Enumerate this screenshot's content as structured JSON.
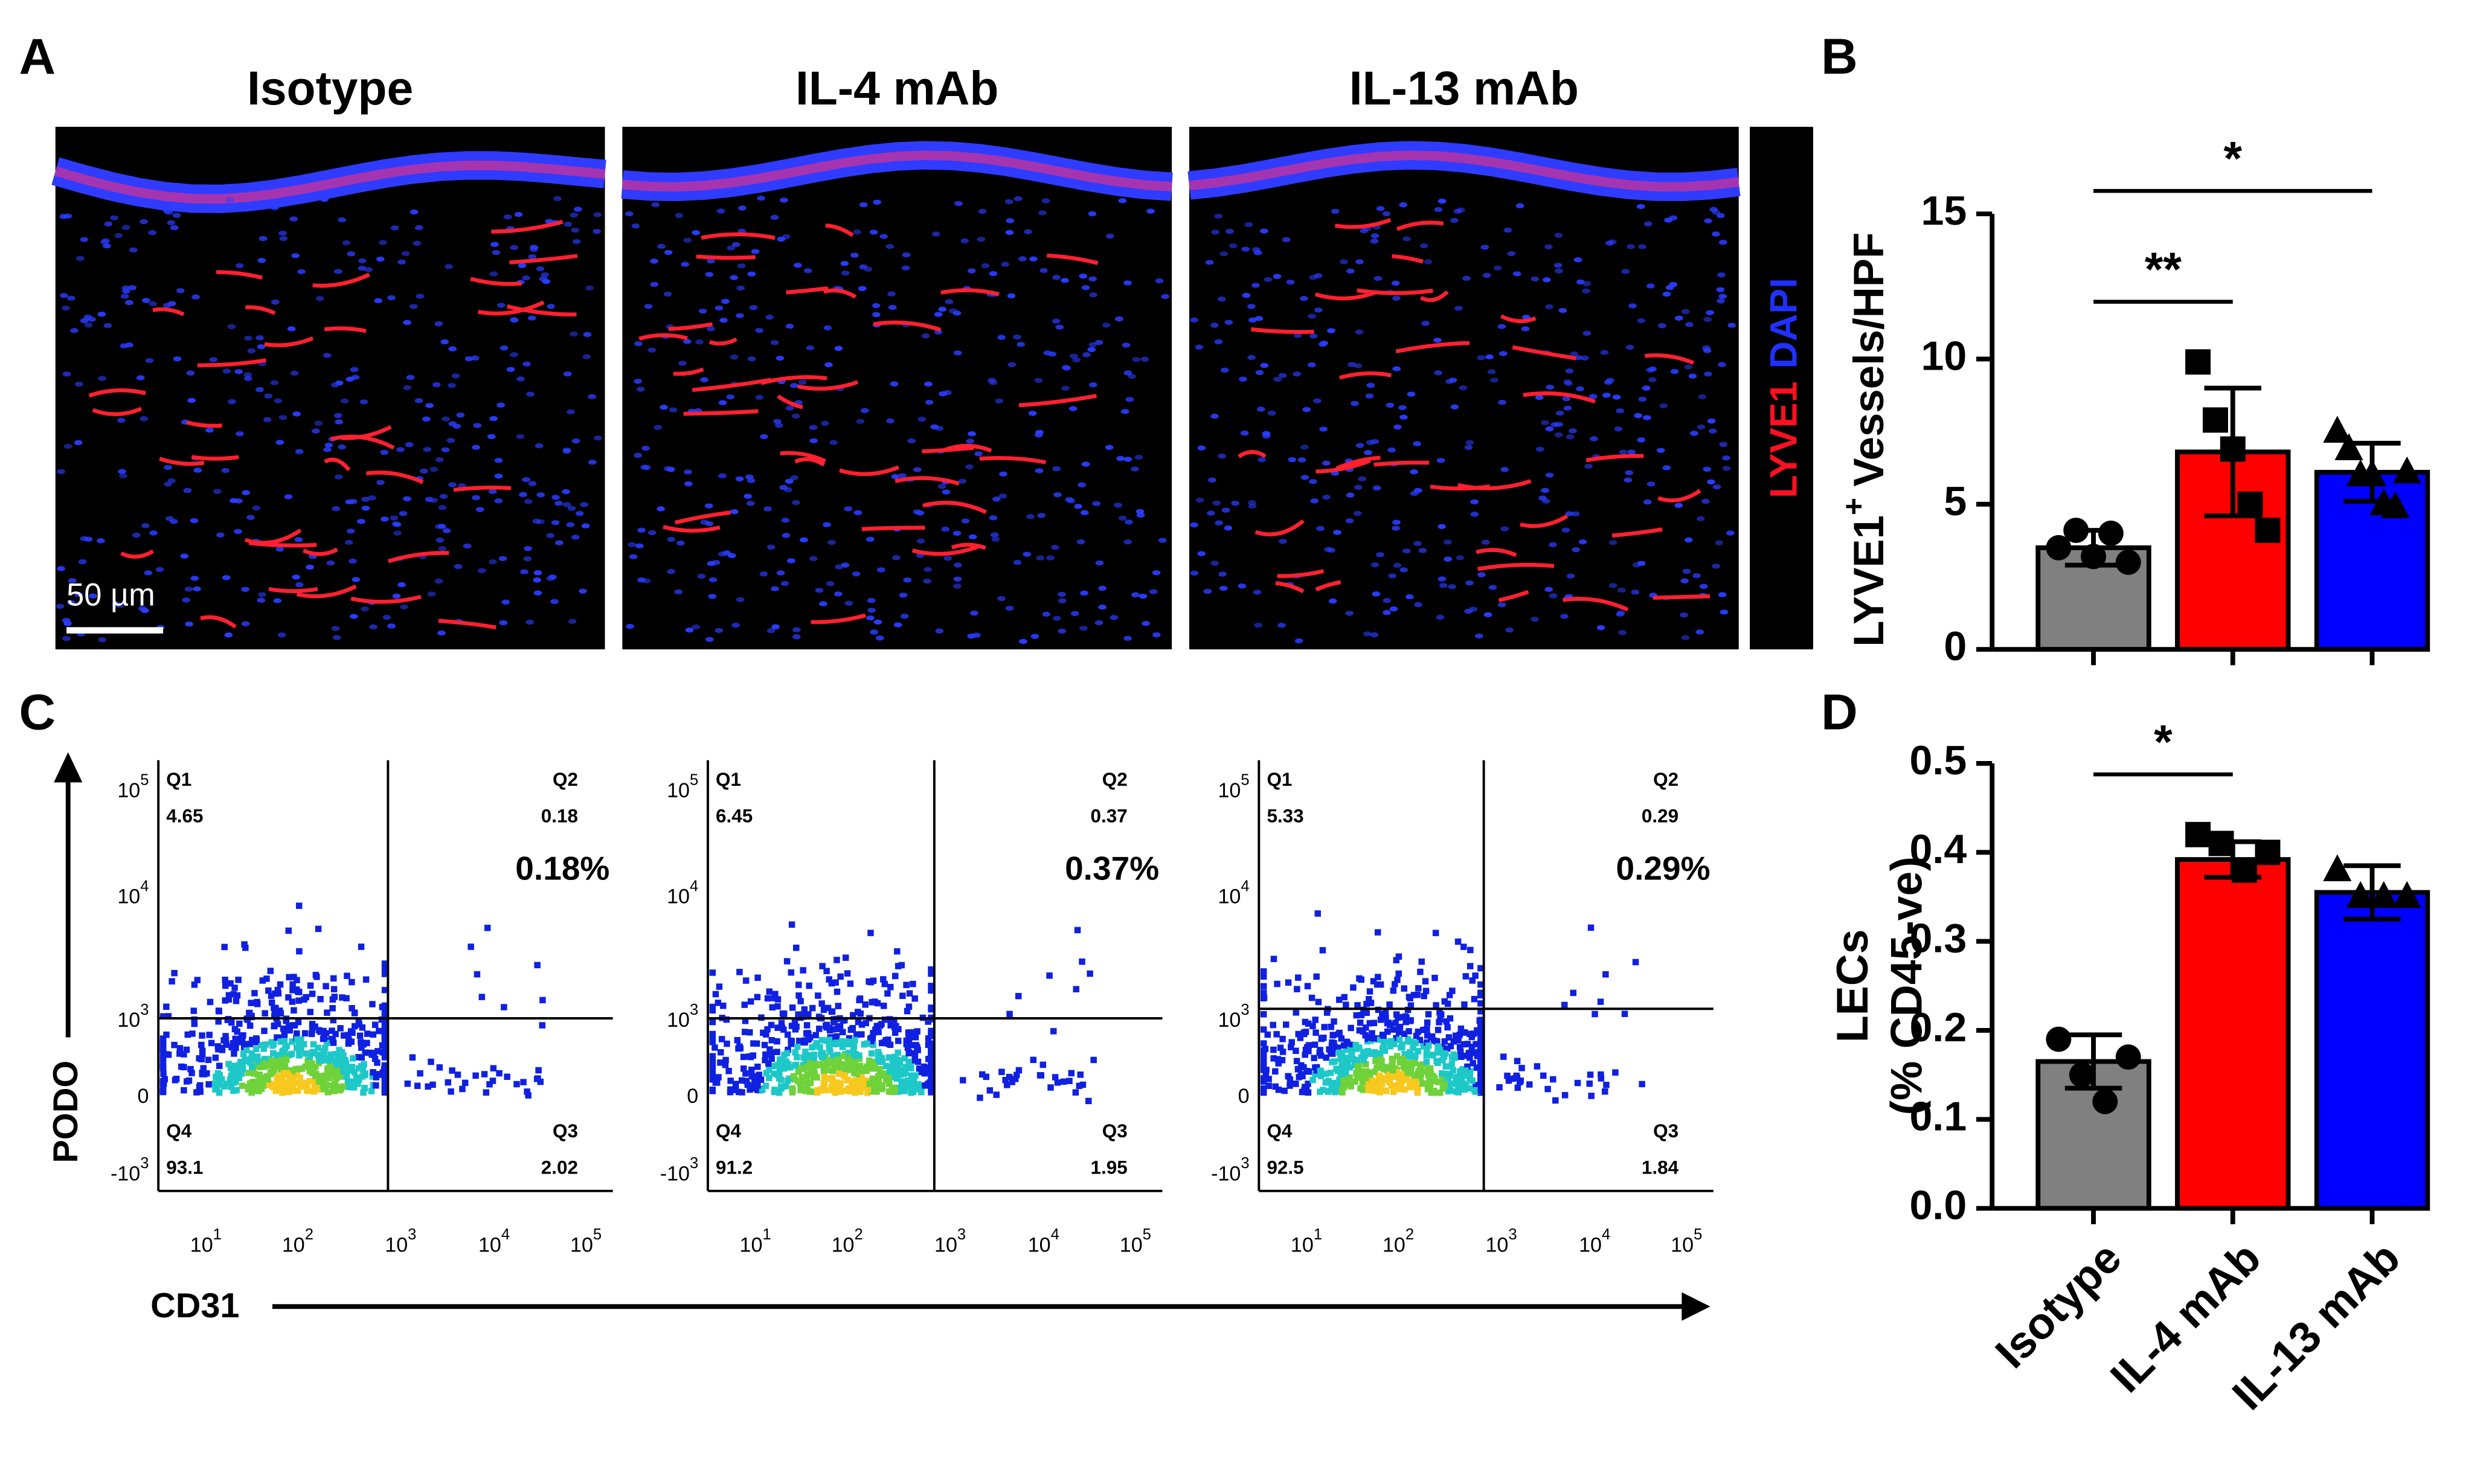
{
  "panel_labels": [
    "A",
    "B",
    "C",
    "D"
  ],
  "images": {
    "titles": [
      "Isotype",
      "IL-4 mAb",
      "IL-13 mAb"
    ],
    "scale_bar": "50 µm",
    "stain": [
      "LYVE1",
      "DAPI"
    ]
  },
  "flow": {
    "y_axis": "PODO",
    "x_axis": "CD31",
    "yticks": [
      {
        "base": "10",
        "exp": "5"
      },
      {
        "base": "10",
        "exp": "4"
      },
      {
        "base": "10",
        "exp": "3"
      },
      {
        "base": "0"
      },
      {
        "base": "-10",
        "exp": "3"
      }
    ],
    "xticks": [
      {
        "base": "10",
        "exp": "1"
      },
      {
        "base": "10",
        "exp": "2"
      },
      {
        "base": "10",
        "exp": "3"
      },
      {
        "base": "10",
        "exp": "4"
      },
      {
        "base": "10",
        "exp": "5"
      }
    ],
    "plots": [
      {
        "quadrants": [
          {
            "name": "Q1",
            "value": 4.65
          },
          {
            "name": "Q2",
            "value": 0.18
          },
          {
            "name": "Q3",
            "value": 2.02
          },
          {
            "name": "Q4",
            "value": 93.1
          }
        ],
        "highlight": "0.18%"
      },
      {
        "quadrants": [
          {
            "name": "Q1",
            "value": 6.45
          },
          {
            "name": "Q2",
            "value": 0.37
          },
          {
            "name": "Q3",
            "value": 1.95
          },
          {
            "name": "Q4",
            "value": 91.2
          }
        ],
        "highlight": "0.37%"
      },
      {
        "quadrants": [
          {
            "name": "Q1",
            "value": 5.33
          },
          {
            "name": "Q2",
            "value": 0.29
          },
          {
            "name": "Q3",
            "value": 1.84
          },
          {
            "name": "Q4",
            "value": 92.5
          }
        ],
        "highlight": "0.29%"
      }
    ]
  },
  "chart_data": [
    {
      "type": "bar",
      "ylabel": {
        "text": "LYVE1",
        "sup": "+",
        "rest": "Vessels/HPF"
      },
      "values": [
        3.5,
        6.8,
        6.1
      ],
      "errors": [
        0.6,
        2.2,
        1.0
      ],
      "points": [
        [
          3.5,
          4.1,
          3.2,
          4.0,
          3.0
        ],
        [
          9.9,
          7.9,
          6.9,
          5.0,
          4.1
        ],
        [
          7.5,
          6.9,
          6.0,
          6.0,
          5.0,
          4.9,
          6.1
        ]
      ],
      "colors": [
        "#808080",
        "#ff0000",
        "#0000ff"
      ],
      "markers": [
        "circle",
        "square",
        "triangle"
      ],
      "ylim": [
        0,
        15
      ],
      "yticks": [
        0,
        5,
        10,
        15
      ],
      "comparisons": [
        {
          "label": "**",
          "bars": [
            0,
            1
          ]
        },
        {
          "label": "*",
          "bars": [
            0,
            2
          ]
        }
      ]
    },
    {
      "type": "bar",
      "ylabel": [
        "LECs",
        "(% CD45-ve)"
      ],
      "categories": [
        "Isotype",
        "IL-4 mAb",
        "IL-13 mAb"
      ],
      "values": [
        0.165,
        0.392,
        0.355
      ],
      "errors": [
        0.03,
        0.02,
        0.03
      ],
      "points": [
        [
          0.19,
          0.15,
          0.12,
          0.17
        ],
        [
          0.42,
          0.41,
          0.38,
          0.4
        ],
        [
          0.38,
          0.35,
          0.35,
          0.35
        ]
      ],
      "colors": [
        "#808080",
        "#ff0000",
        "#0000ff"
      ],
      "markers": [
        "circle",
        "square",
        "triangle"
      ],
      "ylim": [
        0,
        0.5
      ],
      "yticks": [
        {
          "value": 0,
          "label": "0.0"
        },
        0.1,
        0.2,
        0.3,
        0.4,
        0.5
      ],
      "comparisons": [
        {
          "label": "*",
          "bars": [
            0,
            1
          ]
        }
      ]
    }
  ]
}
